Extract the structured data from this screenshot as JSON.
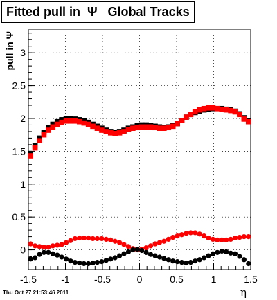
{
  "title": "Fitted pull in  Ψ   Global Tracks",
  "footer": "Thu Oct 27 21:53:46 2011",
  "chart_data": {
    "type": "scatter",
    "xlabel": "η",
    "ylabel": "pull in Ψ",
    "xlim": [
      -1.5,
      1.5
    ],
    "ylim": [
      -0.3,
      3.35
    ],
    "x_ticks": [
      "-1.5",
      "-1",
      "-0.5",
      "0",
      "0.5",
      "1",
      "1.5"
    ],
    "y_ticks": [
      "0",
      "0.5",
      "1",
      "1.5",
      "2",
      "2.5",
      "3"
    ],
    "grid": true,
    "series": [
      {
        "color": "#000000",
        "marker": "square",
        "x": [
          -1.47,
          -1.41,
          -1.35,
          -1.29,
          -1.23,
          -1.17,
          -1.11,
          -1.05,
          -0.99,
          -0.93,
          -0.87,
          -0.81,
          -0.75,
          -0.69,
          -0.63,
          -0.57,
          -0.51,
          -0.45,
          -0.39,
          -0.33,
          -0.27,
          -0.21,
          -0.15,
          -0.09,
          -0.03,
          0.03,
          0.09,
          0.15,
          0.21,
          0.27,
          0.33,
          0.39,
          0.45,
          0.51,
          0.57,
          0.63,
          0.69,
          0.75,
          0.81,
          0.87,
          0.93,
          0.99,
          1.05,
          1.11,
          1.17,
          1.23,
          1.29,
          1.35,
          1.41,
          1.47
        ],
        "y": [
          1.46,
          1.58,
          1.7,
          1.79,
          1.86,
          1.91,
          1.95,
          1.98,
          2.0,
          2.0,
          1.99,
          1.98,
          1.96,
          1.94,
          1.91,
          1.88,
          1.85,
          1.82,
          1.8,
          1.79,
          1.8,
          1.82,
          1.85,
          1.87,
          1.89,
          1.9,
          1.9,
          1.89,
          1.88,
          1.87,
          1.86,
          1.87,
          1.89,
          1.92,
          1.97,
          2.02,
          2.06,
          2.09,
          2.11,
          2.13,
          2.14,
          2.15,
          2.15,
          2.15,
          2.14,
          2.13,
          2.11,
          2.07,
          2.01,
          1.96
        ]
      },
      {
        "color": "#ff0000",
        "marker": "square",
        "x": [
          -1.47,
          -1.41,
          -1.35,
          -1.29,
          -1.23,
          -1.17,
          -1.11,
          -1.05,
          -0.99,
          -0.93,
          -0.87,
          -0.81,
          -0.75,
          -0.69,
          -0.63,
          -0.57,
          -0.51,
          -0.45,
          -0.39,
          -0.33,
          -0.27,
          -0.21,
          -0.15,
          -0.09,
          -0.03,
          0.03,
          0.09,
          0.15,
          0.21,
          0.27,
          0.33,
          0.39,
          0.45,
          0.51,
          0.57,
          0.63,
          0.69,
          0.75,
          0.81,
          0.87,
          0.93,
          0.99,
          1.05,
          1.11,
          1.17,
          1.23,
          1.29,
          1.35,
          1.41,
          1.47
        ],
        "y": [
          1.43,
          1.55,
          1.66,
          1.75,
          1.82,
          1.87,
          1.91,
          1.94,
          1.96,
          1.96,
          1.96,
          1.95,
          1.93,
          1.91,
          1.88,
          1.85,
          1.82,
          1.8,
          1.78,
          1.77,
          1.78,
          1.8,
          1.83,
          1.85,
          1.86,
          1.87,
          1.87,
          1.87,
          1.86,
          1.85,
          1.85,
          1.86,
          1.88,
          1.92,
          1.97,
          2.02,
          2.06,
          2.1,
          2.13,
          2.15,
          2.16,
          2.16,
          2.15,
          2.14,
          2.13,
          2.12,
          2.1,
          2.06,
          1.99,
          1.95
        ]
      },
      {
        "color": "#ff0000",
        "marker": "circle",
        "x": [
          -1.47,
          -1.41,
          -1.35,
          -1.29,
          -1.23,
          -1.17,
          -1.11,
          -1.05,
          -0.99,
          -0.93,
          -0.87,
          -0.81,
          -0.75,
          -0.69,
          -0.63,
          -0.57,
          -0.51,
          -0.45,
          -0.39,
          -0.33,
          -0.27,
          -0.21,
          -0.15,
          -0.09,
          -0.03,
          0.03,
          0.09,
          0.15,
          0.21,
          0.27,
          0.33,
          0.39,
          0.45,
          0.51,
          0.57,
          0.63,
          0.69,
          0.75,
          0.81,
          0.87,
          0.93,
          0.99,
          1.05,
          1.11,
          1.17,
          1.23,
          1.29,
          1.35,
          1.41,
          1.47
        ],
        "y": [
          0.09,
          0.06,
          0.05,
          0.04,
          0.04,
          0.06,
          0.07,
          0.08,
          0.11,
          0.14,
          0.17,
          0.18,
          0.18,
          0.18,
          0.17,
          0.17,
          0.17,
          0.16,
          0.15,
          0.13,
          0.11,
          0.08,
          0.05,
          0.02,
          0.0,
          0.01,
          0.03,
          0.06,
          0.09,
          0.11,
          0.13,
          0.16,
          0.19,
          0.21,
          0.23,
          0.25,
          0.26,
          0.26,
          0.24,
          0.21,
          0.18,
          0.16,
          0.15,
          0.15,
          0.15,
          0.16,
          0.18,
          0.19,
          0.2,
          0.2
        ]
      },
      {
        "color": "#000000",
        "marker": "circle",
        "x": [
          -1.47,
          -1.41,
          -1.35,
          -1.29,
          -1.23,
          -1.17,
          -1.11,
          -1.05,
          -0.99,
          -0.93,
          -0.87,
          -0.81,
          -0.75,
          -0.69,
          -0.63,
          -0.57,
          -0.51,
          -0.45,
          -0.39,
          -0.33,
          -0.27,
          -0.21,
          -0.15,
          -0.09,
          -0.03,
          0.03,
          0.09,
          0.15,
          0.21,
          0.27,
          0.33,
          0.39,
          0.45,
          0.51,
          0.57,
          0.63,
          0.69,
          0.75,
          0.81,
          0.87,
          0.93,
          0.99,
          1.05,
          1.11,
          1.17,
          1.23,
          1.29,
          1.35,
          1.41,
          1.47
        ],
        "y": [
          -0.14,
          -0.12,
          -0.07,
          -0.04,
          -0.04,
          -0.06,
          -0.08,
          -0.11,
          -0.14,
          -0.17,
          -0.19,
          -0.2,
          -0.21,
          -0.21,
          -0.2,
          -0.19,
          -0.18,
          -0.16,
          -0.14,
          -0.12,
          -0.09,
          -0.06,
          -0.03,
          0.0,
          0.01,
          -0.01,
          -0.04,
          -0.07,
          -0.09,
          -0.11,
          -0.13,
          -0.15,
          -0.17,
          -0.18,
          -0.19,
          -0.2,
          -0.19,
          -0.17,
          -0.15,
          -0.12,
          -0.09,
          -0.06,
          -0.04,
          -0.02,
          -0.03,
          -0.05,
          -0.06,
          -0.1,
          -0.15,
          -0.21
        ]
      }
    ]
  }
}
